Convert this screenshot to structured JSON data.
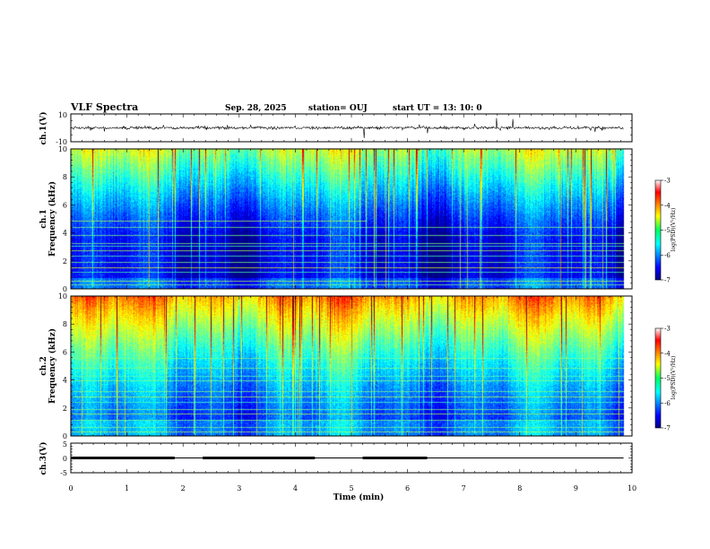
{
  "header": {
    "title": "VLF Spectra",
    "date": "Sep. 28, 2025",
    "station": "station= OUJ",
    "start": "start  UT =   13: 10: 0"
  },
  "chart_data": [
    {
      "type": "line",
      "name": "ch1-waveform",
      "ylabel": "ch.1(V)",
      "xlim": [
        0,
        10
      ],
      "ylim": [
        -10,
        10
      ],
      "yticks": [
        "10",
        "-10"
      ],
      "baseline": 0,
      "data_end_min": 9.85
    },
    {
      "type": "heatmap",
      "name": "ch1-spectrogram",
      "ylabel_top": "ch.1",
      "ylabel": "Frequency (kHz)",
      "xlim": [
        0,
        10
      ],
      "ylim": [
        0,
        10
      ],
      "yticks": [
        "0",
        "2",
        "4",
        "6",
        "8",
        "10"
      ],
      "data_end_min": 9.85,
      "colorbar": {
        "label": "log(PSD)(V²/Hz)",
        "range": [
          -7,
          -3
        ],
        "ticks": [
          "-3",
          "-4",
          "-5",
          "-6",
          "-7"
        ]
      }
    },
    {
      "type": "heatmap",
      "name": "ch2-spectrogram",
      "ylabel_top": "ch.2",
      "ylabel": "Frequency (kHz)",
      "xlim": [
        0,
        10
      ],
      "ylim": [
        0,
        10
      ],
      "yticks": [
        "0",
        "2",
        "4",
        "6",
        "8",
        "10"
      ],
      "data_end_min": 9.85,
      "colorbar": {
        "label": "log(PSD)(V²/Hz)",
        "range": [
          -7,
          -3
        ],
        "ticks": [
          "-3",
          "-4",
          "-5",
          "-6",
          "-7"
        ]
      }
    },
    {
      "type": "line",
      "name": "ch3-signal",
      "ylabel": "ch.3(V)",
      "xlabel": "Time  (min)",
      "xlim": [
        0,
        10
      ],
      "ylim": [
        -5,
        5
      ],
      "yticks": [
        "5",
        "0",
        "-5"
      ],
      "xticks": [
        "0",
        "1",
        "2",
        "3",
        "4",
        "5",
        "6",
        "7",
        "8",
        "9",
        "10"
      ],
      "level_v": 0,
      "data_end_min": 9.85,
      "thick_segments_min": [
        [
          0,
          1.85
        ],
        [
          2.35,
          4.35
        ],
        [
          5.2,
          6.35
        ]
      ]
    }
  ]
}
